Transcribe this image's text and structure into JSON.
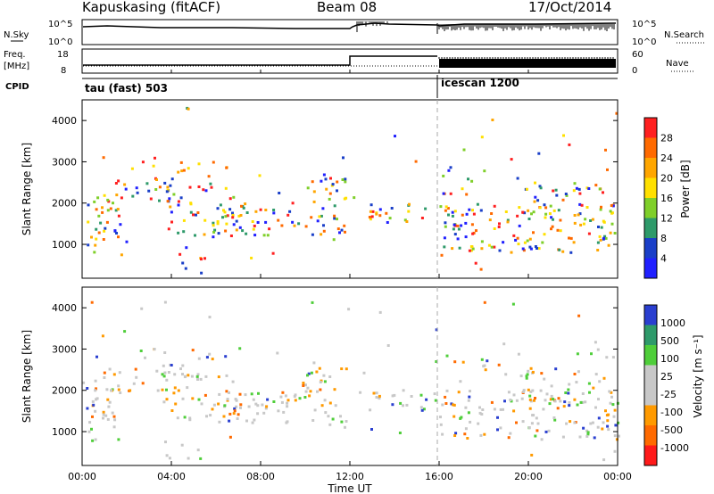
{
  "header": {
    "radar": "Kapuskasing (fitACF)",
    "beam": "Beam 08",
    "date": "17/Oct/2014"
  },
  "top_panels": {
    "nsky_label": "N.Sky",
    "nsky_ticks": [
      "10^5",
      "10^0"
    ],
    "nsearch_label": "N.Search",
    "nsearch_ticks": [
      "10^5",
      "10^0"
    ],
    "freq_label_1": "Freq.",
    "freq_label_2": "[MHz]",
    "freq_ticks": [
      "18",
      "8"
    ],
    "nave_label": "Nave",
    "nave_ticks": [
      "60",
      "0"
    ],
    "cpid_label": "CPID",
    "cpid_segments": [
      "tau (fast) 503",
      "icescan 1200"
    ]
  },
  "chart_data": [
    {
      "type": "heatmap",
      "name": "power",
      "ylabel": "Slant Range [km]",
      "yticks": [
        "4000",
        "3000",
        "2000",
        "1000"
      ],
      "ylim": [
        180,
        4500
      ],
      "xlim": [
        0,
        24
      ],
      "colorbar_label": "Power [dB]",
      "colorbar_ticks": [
        "28",
        "24",
        "20",
        "16",
        "12",
        "8",
        "4"
      ],
      "colors": [
        "#ff2020",
        "#ff6a00",
        "#ffa600",
        "#ffe000",
        "#7fcf2a",
        "#2e9a6a",
        "#1a3fc8",
        "#2020ff"
      ]
    },
    {
      "type": "heatmap",
      "name": "velocity",
      "ylabel": "Slant Range [km]",
      "yticks": [
        "4000",
        "3000",
        "2000",
        "1000"
      ],
      "ylim": [
        180,
        4500
      ],
      "xlim": [
        0,
        24
      ],
      "colorbar_label": "Velocity [m s⁻¹]",
      "colorbar_ticks": [
        "1000",
        "500",
        "100",
        "25",
        "-25",
        "-100",
        "-500",
        "-1000"
      ],
      "colors": [
        "#2a3fd0",
        "#2e9a6a",
        "#4fce3a",
        "#c8c8c8",
        "#c8c8c8",
        "#ff9a00",
        "#ff6a00",
        "#ff1a1a"
      ]
    }
  ],
  "xaxis": {
    "ticks": [
      "00:00",
      "04:00",
      "08:00",
      "12:00",
      "16:00",
      "20:00",
      "00:00"
    ],
    "label": "Time UT"
  }
}
